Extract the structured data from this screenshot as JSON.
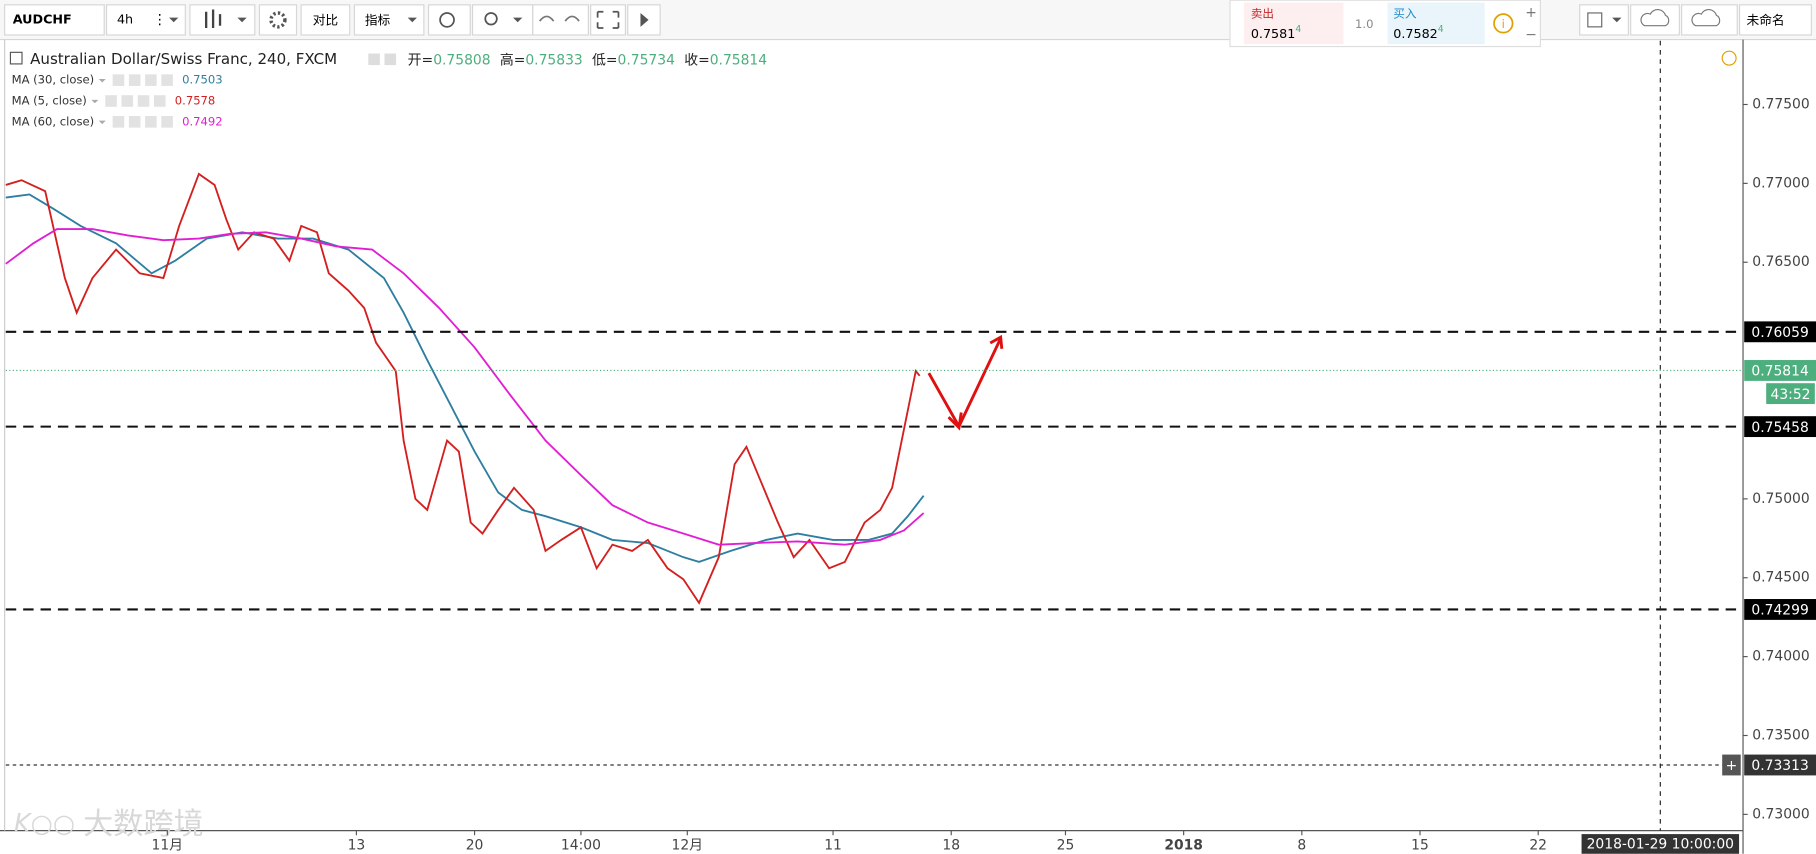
{
  "toolbar": {
    "symbol": "AUDCHF",
    "interval": "4h",
    "compare": "对比",
    "indicators": "指标",
    "sell": {
      "label": "卖出",
      "price": "0.7581",
      "pip": "4"
    },
    "spread": "1.0",
    "buy": {
      "label": "买入",
      "price": "0.7582",
      "pip": "4"
    },
    "layout_name": "未命名"
  },
  "watermark": "大数跨境",
  "chart_data": {
    "type": "line",
    "title": "Australian Dollar/Swiss Franc, 240, FXCM",
    "ohlc": [
      {
        "label": "开=",
        "value": "0.75808"
      },
      {
        "label": "高=",
        "value": "0.75833"
      },
      {
        "label": "低=",
        "value": "0.75734"
      },
      {
        "label": "收=",
        "value": "0.75814"
      }
    ],
    "series": [
      {
        "name": "MA (30, close)",
        "legend_value": "0.7503",
        "color": "#2e7ea0",
        "x": [
          0,
          6,
          12,
          19,
          28,
          37,
          43,
          51,
          60,
          69,
          78,
          87,
          96,
          101,
          107,
          113,
          119,
          125,
          131,
          137,
          146,
          154,
          163,
          172,
          176,
          184,
          193,
          201,
          210,
          219,
          225,
          229,
          233
        ],
        "values": [
          0.7691,
          0.7693,
          0.7684,
          0.7673,
          0.7662,
          0.7643,
          0.7651,
          0.7665,
          0.7669,
          0.7665,
          0.7665,
          0.7658,
          0.764,
          0.7618,
          0.7588,
          0.7559,
          0.753,
          0.7504,
          0.7493,
          0.7489,
          0.7482,
          0.7474,
          0.7472,
          0.7463,
          0.746,
          0.7467,
          0.7474,
          0.7478,
          0.7474,
          0.7474,
          0.7478,
          0.7489,
          0.7502
        ]
      },
      {
        "name": "MA (5, close)",
        "legend_value": "0.7578",
        "color": "#d41f1f",
        "x": [
          0,
          4,
          10,
          15,
          18,
          22,
          28,
          34,
          40,
          44,
          49,
          53,
          56,
          59,
          63,
          68,
          72,
          75,
          79,
          82,
          87,
          91,
          94,
          99,
          101,
          104,
          107,
          112,
          115,
          118,
          121,
          125,
          129,
          134,
          137,
          141,
          146,
          150,
          154,
          159,
          163,
          168,
          172,
          176,
          181,
          185,
          188,
          191,
          196,
          200,
          204,
          209,
          213,
          218,
          222,
          225,
          228,
          231,
          232
        ],
        "values": [
          0.7699,
          0.7702,
          0.7695,
          0.764,
          0.7618,
          0.764,
          0.7658,
          0.7643,
          0.764,
          0.7673,
          0.7706,
          0.7699,
          0.7677,
          0.7658,
          0.7669,
          0.7665,
          0.7651,
          0.7673,
          0.7669,
          0.7643,
          0.7632,
          0.7621,
          0.7599,
          0.7581,
          0.7537,
          0.75,
          0.7493,
          0.7537,
          0.753,
          0.7485,
          0.7478,
          0.7493,
          0.7507,
          0.7493,
          0.7467,
          0.7474,
          0.7482,
          0.7456,
          0.7471,
          0.7467,
          0.7474,
          0.7456,
          0.7449,
          0.7434,
          0.7463,
          0.7522,
          0.7533,
          0.7515,
          0.7485,
          0.7463,
          0.7474,
          0.7456,
          0.746,
          0.7485,
          0.7493,
          0.7507,
          0.7544,
          0.7581,
          0.7578
        ]
      },
      {
        "name": "MA (60, close)",
        "legend_value": "0.7492",
        "color": "#e01fd3",
        "x": [
          0,
          7,
          13,
          22,
          31,
          40,
          49,
          57,
          66,
          75,
          84,
          93,
          101,
          110,
          119,
          128,
          137,
          146,
          154,
          163,
          172,
          181,
          190,
          201,
          213,
          222,
          228,
          233
        ],
        "values": [
          0.7649,
          0.7662,
          0.7671,
          0.7671,
          0.7667,
          0.7664,
          0.7665,
          0.7668,
          0.7669,
          0.7665,
          0.766,
          0.7658,
          0.7643,
          0.7621,
          0.7596,
          0.7566,
          0.7537,
          0.7515,
          0.7496,
          0.7485,
          0.7478,
          0.7471,
          0.7472,
          0.7473,
          0.7471,
          0.7474,
          0.748,
          0.7491
        ]
      }
    ],
    "ylim": [
      0.72897,
      0.77904
    ],
    "yticks": [
      {
        "value": 0.775,
        "label": "0.77500"
      },
      {
        "value": 0.77,
        "label": "0.77000"
      },
      {
        "value": 0.765,
        "label": "0.76500"
      },
      {
        "value": 0.75,
        "label": "0.75000"
      },
      {
        "value": 0.745,
        "label": "0.74500"
      },
      {
        "value": 0.74,
        "label": "0.74000"
      },
      {
        "value": 0.735,
        "label": "0.73500"
      },
      {
        "value": 0.73,
        "label": "0.73000"
      }
    ],
    "xlim": [
      0,
      441
    ],
    "xticks": [
      {
        "value": 41,
        "label": "11月"
      },
      {
        "value": 89,
        "label": "13"
      },
      {
        "value": 119,
        "label": "20"
      },
      {
        "value": 146,
        "label": "14:00"
      },
      {
        "value": 173,
        "label": "12月"
      },
      {
        "value": 210,
        "label": "11"
      },
      {
        "value": 240,
        "label": "18"
      },
      {
        "value": 269,
        "label": "25"
      },
      {
        "value": 299,
        "label": "2018",
        "bold": true
      },
      {
        "value": 329,
        "label": "8"
      },
      {
        "value": 359,
        "label": "15"
      },
      {
        "value": 389,
        "label": "22"
      }
    ],
    "levels": [
      0.76059,
      0.75458,
      0.74299
    ],
    "dotted_level": 0.73313,
    "last_price": 0.75814,
    "countdown": "43:52",
    "price_color": "#4caf7d",
    "crosshair": {
      "x": 420,
      "label": "2018-01-29 10:00:00"
    },
    "grid": false
  }
}
